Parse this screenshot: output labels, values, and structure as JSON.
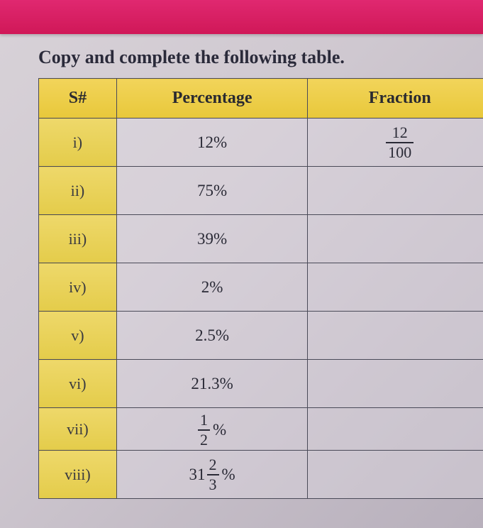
{
  "instruction": "Copy and complete the following table.",
  "headers": {
    "sn": "S#",
    "pct": "Percentage",
    "frac": "Fraction"
  },
  "rows": [
    {
      "label": "i)",
      "pct": "12%",
      "frac_num": "12",
      "frac_den": "100"
    },
    {
      "label": "ii)",
      "pct": "75%",
      "frac_num": "",
      "frac_den": ""
    },
    {
      "label": "iii)",
      "pct": "39%",
      "frac_num": "",
      "frac_den": ""
    },
    {
      "label": "iv)",
      "pct": "2%",
      "frac_num": "",
      "frac_den": ""
    },
    {
      "label": "v)",
      "pct": "2.5%",
      "frac_num": "",
      "frac_den": ""
    },
    {
      "label": "vi)",
      "pct": "21.3%",
      "frac_num": "",
      "frac_den": ""
    },
    {
      "label": "vii)",
      "mixed_whole": "",
      "mixed_num": "1",
      "mixed_den": "2",
      "pct_suffix": "%",
      "frac_num": "",
      "frac_den": ""
    },
    {
      "label": "viii)",
      "mixed_whole": "31",
      "mixed_num": "2",
      "mixed_den": "3",
      "pct_suffix": "%",
      "frac_num": "",
      "frac_den": ""
    }
  ],
  "colors": {
    "banner": "#d01858",
    "header_bg": "#e8c83a",
    "label_bg": "#e4cc4a",
    "border": "#4a4a58",
    "text": "#2a2a36",
    "page_bg": "#cfc8d0"
  }
}
